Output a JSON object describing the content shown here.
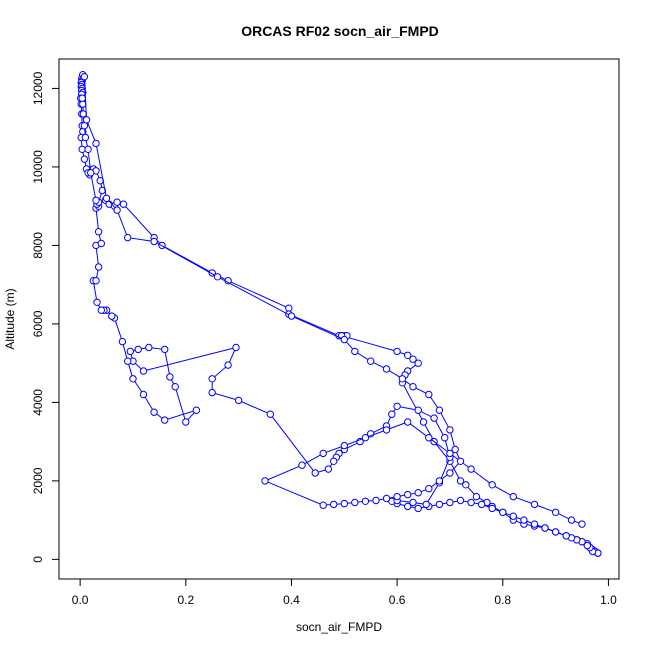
{
  "chart_data": {
    "type": "scatter",
    "title": "ORCAS RF02 socn_air_FMPD",
    "xlabel": "socn_air_FMPD",
    "ylabel": "Altitude (m)",
    "xlim": [
      -0.04,
      1.02
    ],
    "ylim": [
      -500,
      12750
    ],
    "xticks": [
      0.0,
      0.2,
      0.4,
      0.6,
      0.8,
      1.0
    ],
    "xtick_labels": [
      "0.0",
      "0.2",
      "0.4",
      "0.6",
      "0.8",
      "1.0"
    ],
    "yticks": [
      0,
      2000,
      4000,
      6000,
      8000,
      10000,
      12000
    ],
    "ytick_labels": [
      "0",
      "2000",
      "4000",
      "6000",
      "8000",
      "10000",
      "12000"
    ],
    "grid": false,
    "color": "#0000ff",
    "marker": "open-circle",
    "series": [
      {
        "x": [
          0.005,
          0.003,
          0.004,
          0.002,
          0.003,
          0.002,
          0.004,
          0.003,
          0.005,
          0.003,
          0.001,
          0.002,
          0.003,
          0.004,
          0.005,
          0.002,
          0.004,
          0.008,
          0.012,
          0.018,
          0.015,
          0.025,
          0.03,
          0.038,
          0.042,
          0.035,
          0.048,
          0.055,
          0.065,
          0.07,
          0.082,
          0.14,
          0.155,
          0.25,
          0.28,
          0.395,
          0.395,
          0.49,
          0.5,
          0.505,
          0.495,
          0.6,
          0.62,
          0.63,
          0.64,
          0.62,
          0.615,
          0.61,
          0.65,
          0.67,
          0.7,
          0.72,
          0.73,
          0.75,
          0.77,
          0.78,
          0.8,
          0.82,
          0.84,
          0.86,
          0.88,
          0.9,
          0.92,
          0.94,
          0.95,
          0.96,
          0.965,
          0.97,
          0.975,
          0.98
        ],
        "y": [
          12300,
          12250,
          12200,
          12150,
          12100,
          12050,
          12000,
          11950,
          11900,
          11850,
          11750,
          11600,
          11350,
          11050,
          10900,
          10750,
          10450,
          10200,
          9950,
          9800,
          9850,
          9950,
          9900,
          9650,
          9400,
          9100,
          9150,
          9050,
          9000,
          9100,
          9050,
          8200,
          8000,
          7300,
          7100,
          6400,
          6250,
          5700,
          5700,
          5700,
          5700,
          5300,
          5200,
          5100,
          5000,
          4800,
          4700,
          4500,
          3500,
          3000,
          2500,
          2000,
          1900,
          1600,
          1450,
          1350,
          1200,
          1000,
          900,
          850,
          800,
          700,
          600,
          500,
          450,
          400,
          300,
          250,
          200,
          160
        ]
      },
      {
        "x": [
          0.98,
          0.97,
          0.965,
          0.96,
          0.95,
          0.94,
          0.93,
          0.92,
          0.9,
          0.88,
          0.86,
          0.84,
          0.82,
          0.8,
          0.78,
          0.76,
          0.74,
          0.72,
          0.7,
          0.68,
          0.66,
          0.64,
          0.62,
          0.6,
          0.59,
          0.6,
          0.63,
          0.655,
          0.68,
          0.7,
          0.69,
          0.67,
          0.64,
          0.6,
          0.59,
          0.58,
          0.55,
          0.53,
          0.5,
          0.49,
          0.485,
          0.48,
          0.47,
          0.445,
          0.36,
          0.3,
          0.25,
          0.25,
          0.28,
          0.295,
          0.12,
          0.1,
          0.095,
          0.11,
          0.13,
          0.16,
          0.17,
          0.18,
          0.2,
          0.22,
          0.16,
          0.14,
          0.12,
          0.1,
          0.09,
          0.08,
          0.065,
          0.06,
          0.05,
          0.045,
          0.04,
          0.032,
          0.025,
          0.03,
          0.035,
          0.03,
          0.04,
          0.035,
          0.03,
          0.035,
          0.032,
          0.035,
          0.03,
          0.02,
          0.015,
          0.01,
          0.008,
          0.006,
          0.005,
          0.004
        ],
        "y": [
          160,
          200,
          300,
          350,
          450,
          500,
          550,
          600,
          700,
          800,
          900,
          1000,
          1100,
          1200,
          1300,
          1400,
          1450,
          1500,
          1450,
          1400,
          1350,
          1300,
          1350,
          1420,
          1480,
          1500,
          1450,
          1400,
          1950,
          2600,
          3100,
          3600,
          3800,
          3900,
          3700,
          3400,
          3200,
          3000,
          2800,
          2700,
          2600,
          2500,
          2300,
          2200,
          3700,
          4050,
          4250,
          4600,
          4950,
          5400,
          4800,
          5050,
          5300,
          5350,
          5400,
          5350,
          4650,
          4400,
          3500,
          3800,
          3550,
          3750,
          4200,
          4600,
          5050,
          5550,
          6150,
          6200,
          6350,
          6350,
          6350,
          6550,
          7100,
          7100,
          7450,
          8000,
          8050,
          8350,
          8950,
          9000,
          9050,
          9100,
          9150,
          9850,
          10450,
          10750,
          11050,
          11350,
          11600,
          11750
        ]
      },
      {
        "x": [
          0.005,
          0.008,
          0.012,
          0.03,
          0.05,
          0.07,
          0.09,
          0.14,
          0.26,
          0.4,
          0.5,
          0.52,
          0.55,
          0.58,
          0.61,
          0.63,
          0.66,
          0.68,
          0.7,
          0.71,
          0.72,
          0.7,
          0.68,
          0.66,
          0.64,
          0.62,
          0.6,
          0.58,
          0.56,
          0.54,
          0.52,
          0.5,
          0.48,
          0.46,
          0.35,
          0.42,
          0.46,
          0.5,
          0.54,
          0.58,
          0.62,
          0.66,
          0.7,
          0.74,
          0.78,
          0.82,
          0.86,
          0.9,
          0.93,
          0.95
        ],
        "y": [
          12350,
          12300,
          11200,
          10600,
          9200,
          8900,
          8200,
          8100,
          7200,
          6200,
          5600,
          5300,
          5050,
          4850,
          4600,
          4400,
          4200,
          3800,
          3300,
          2800,
          2500,
          2200,
          2000,
          1800,
          1700,
          1650,
          1600,
          1550,
          1500,
          1480,
          1450,
          1420,
          1400,
          1380,
          2000,
          2400,
          2700,
          2900,
          3100,
          3300,
          3500,
          3100,
          2700,
          2300,
          1900,
          1600,
          1400,
          1200,
          1000,
          900
        ]
      }
    ]
  }
}
